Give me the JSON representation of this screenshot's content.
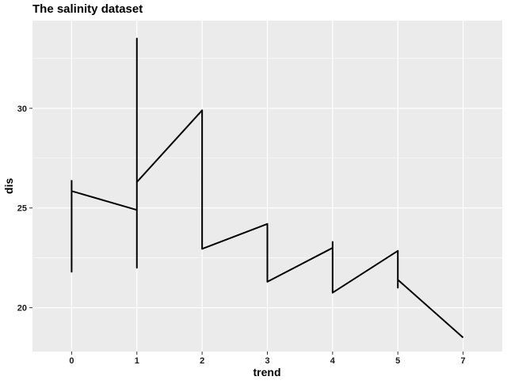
{
  "chart_data": {
    "type": "line",
    "title": "The salinity dataset",
    "xlabel": "trend",
    "ylabel": "dis",
    "xlim": [
      -0.6,
      6.6
    ],
    "ylim": [
      17.8,
      34.4
    ],
    "x_ticks": [
      {
        "value": 0,
        "label": "0"
      },
      {
        "value": 1,
        "label": "1"
      },
      {
        "value": 2,
        "label": "2"
      },
      {
        "value": 3,
        "label": "3"
      },
      {
        "value": 4,
        "label": "4"
      },
      {
        "value": 5,
        "label": "5"
      },
      {
        "value": 6,
        "label": "7"
      }
    ],
    "y_ticks": [
      20,
      25,
      30
    ],
    "grid": true,
    "colors": {
      "panel": "#ebebeb",
      "grid_major": "#ffffff",
      "line": "#000000"
    },
    "series": [
      {
        "x": [
          0,
          0,
          0,
          0,
          1,
          1,
          1,
          1,
          2,
          2,
          3,
          3,
          4,
          4,
          4,
          4,
          5,
          5,
          5,
          5,
          6
        ],
        "y": [
          26.4,
          21.8,
          25.85,
          25.85,
          24.9,
          33.5,
          22.0,
          26.3,
          29.9,
          22.95,
          24.2,
          21.3,
          23.0,
          23.3,
          20.75,
          20.75,
          22.85,
          21.0,
          21.4,
          21.4,
          18.5
        ]
      }
    ]
  }
}
